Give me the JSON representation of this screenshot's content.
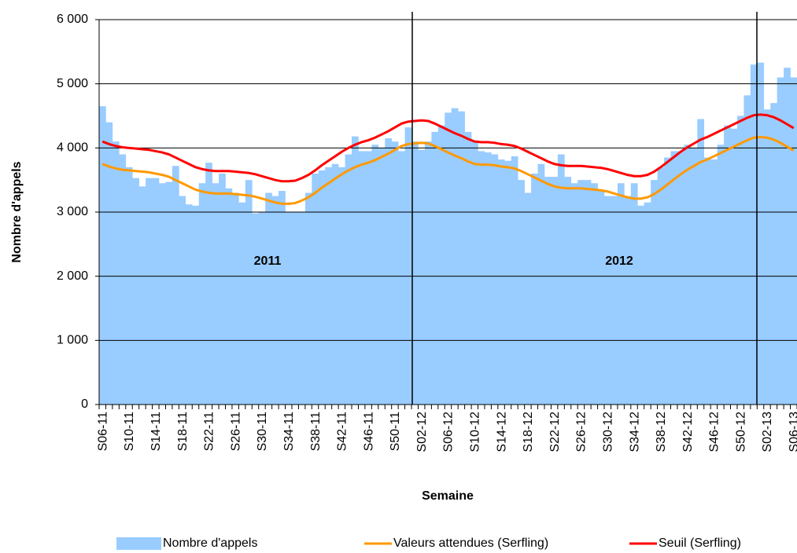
{
  "chart_data": {
    "type": "bar",
    "y_label": "Nombre d'appels",
    "x_label": "Semaine",
    "annotations": [
      "2011",
      "2012"
    ],
    "categories": [
      "S06-11",
      null,
      null,
      null,
      "S10-11",
      null,
      null,
      null,
      "S14-11",
      null,
      null,
      null,
      "S18-11",
      null,
      null,
      null,
      "S22-11",
      null,
      null,
      null,
      "S26-11",
      null,
      null,
      null,
      "S30-11",
      null,
      null,
      null,
      "S34-11",
      null,
      null,
      null,
      "S38-11",
      null,
      null,
      null,
      "S42-11",
      null,
      null,
      null,
      "S46-11",
      null,
      null,
      null,
      "S50-11",
      null,
      null,
      null,
      "S02-12",
      null,
      null,
      null,
      "S06-12",
      null,
      null,
      null,
      "S10-12",
      null,
      null,
      null,
      "S14-12",
      null,
      null,
      null,
      "S18-12",
      null,
      null,
      null,
      "S22-12",
      null,
      null,
      null,
      "S26-12",
      null,
      null,
      null,
      "S30-12",
      null,
      null,
      null,
      "S34-12",
      null,
      null,
      null,
      "S38-12",
      null,
      null,
      null,
      "S42-12",
      null,
      null,
      null,
      "S46-12",
      null,
      null,
      null,
      "S50-12",
      null,
      null,
      null,
      "S02-13",
      null,
      null,
      null,
      "S06-13"
    ],
    "series": [
      {
        "name": "Nombre d'appels",
        "color": "#99ccff",
        "type": "bar",
        "values": [
          4650,
          4400,
          4100,
          3900,
          3700,
          3530,
          3400,
          3530,
          3530,
          3450,
          3470,
          3720,
          3250,
          3120,
          3100,
          3450,
          3770,
          3450,
          3600,
          3370,
          3300,
          3150,
          3500,
          2980,
          3000,
          3300,
          3250,
          3330,
          3000,
          3000,
          3000,
          3300,
          3600,
          3650,
          3700,
          3750,
          3700,
          3900,
          4180,
          3950,
          3950,
          4050,
          4000,
          4150,
          4100,
          3950,
          4320,
          4100,
          3970,
          4100,
          4250,
          4350,
          4550,
          4620,
          4570,
          4250,
          4100,
          3950,
          3930,
          3900,
          3820,
          3800,
          3870,
          3500,
          3300,
          3600,
          3750,
          3550,
          3550,
          3900,
          3550,
          3450,
          3500,
          3500,
          3450,
          3350,
          3250,
          3250,
          3450,
          3250,
          3450,
          3100,
          3150,
          3500,
          3700,
          3850,
          3950,
          3950,
          4050,
          4000,
          4450,
          3850,
          3820,
          4050,
          4350,
          4300,
          4500,
          4820,
          5300,
          5330,
          4600,
          4700,
          5100,
          5250,
          5100
        ]
      },
      {
        "name": "Valeurs attendues (Serfling)",
        "color": "#ff9900",
        "type": "line",
        "values": [
          3750,
          3710,
          3680,
          3660,
          3650,
          3640,
          3630,
          3620,
          3600,
          3580,
          3550,
          3500,
          3450,
          3400,
          3350,
          3320,
          3300,
          3290,
          3290,
          3290,
          3280,
          3270,
          3260,
          3240,
          3210,
          3180,
          3150,
          3130,
          3130,
          3140,
          3180,
          3230,
          3300,
          3380,
          3450,
          3520,
          3590,
          3650,
          3700,
          3740,
          3770,
          3810,
          3860,
          3910,
          3970,
          4030,
          4060,
          4070,
          4080,
          4070,
          4030,
          3980,
          3930,
          3880,
          3840,
          3790,
          3750,
          3740,
          3740,
          3730,
          3710,
          3700,
          3680,
          3640,
          3590,
          3540,
          3490,
          3440,
          3400,
          3380,
          3370,
          3370,
          3370,
          3360,
          3350,
          3340,
          3320,
          3290,
          3260,
          3230,
          3210,
          3210,
          3230,
          3280,
          3350,
          3430,
          3510,
          3590,
          3660,
          3720,
          3780,
          3820,
          3870,
          3920,
          3970,
          4020,
          4070,
          4120,
          4160,
          4170,
          4160,
          4130,
          4080,
          4020,
          3960
        ]
      },
      {
        "name": "Seuil (Serfling)",
        "color": "#ff0000",
        "type": "line",
        "values": [
          4100,
          4060,
          4030,
          4010,
          4000,
          3990,
          3980,
          3970,
          3950,
          3930,
          3900,
          3850,
          3800,
          3750,
          3700,
          3670,
          3650,
          3640,
          3640,
          3640,
          3630,
          3620,
          3610,
          3590,
          3560,
          3530,
          3500,
          3480,
          3480,
          3490,
          3530,
          3580,
          3650,
          3730,
          3800,
          3870,
          3940,
          4000,
          4050,
          4090,
          4120,
          4160,
          4210,
          4260,
          4320,
          4380,
          4410,
          4420,
          4430,
          4420,
          4380,
          4330,
          4280,
          4230,
          4190,
          4140,
          4100,
          4090,
          4090,
          4080,
          4060,
          4050,
          4030,
          3990,
          3940,
          3890,
          3840,
          3790,
          3750,
          3730,
          3720,
          3720,
          3720,
          3710,
          3700,
          3690,
          3670,
          3640,
          3610,
          3580,
          3560,
          3560,
          3580,
          3630,
          3700,
          3780,
          3860,
          3940,
          4010,
          4070,
          4130,
          4170,
          4220,
          4270,
          4320,
          4370,
          4420,
          4470,
          4510,
          4520,
          4510,
          4480,
          4430,
          4370,
          4310
        ]
      }
    ],
    "ylim": [
      0,
      6000
    ],
    "yticks": [
      0,
      {
        "value": 1000,
        "label": "1 000"
      },
      {
        "value": 2000,
        "label": "2 000"
      },
      {
        "value": 3000,
        "label": "3 000"
      },
      {
        "value": 4000,
        "label": "4 000"
      },
      {
        "value": 5000,
        "label": "5 000"
      },
      {
        "value": 6000,
        "label": "6 000"
      }
    ],
    "grid": true
  }
}
